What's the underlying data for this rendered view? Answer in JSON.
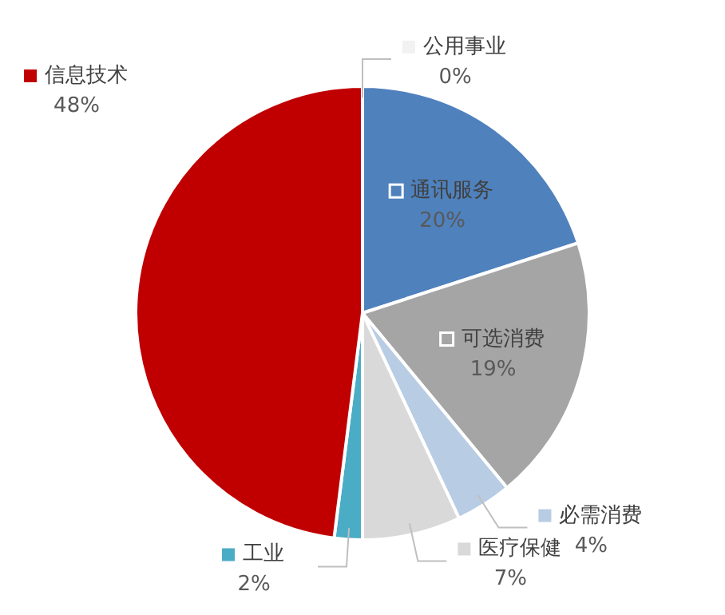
{
  "chart_data": {
    "type": "pie",
    "legend": "top left",
    "value_labels": [
      "0%",
      "20%",
      "19%",
      "4%",
      "7%",
      "2%",
      "48%"
    ],
    "categories": [
      "公用事业",
      "通讯服务",
      "可选消费",
      "必需消费",
      "医疗保健",
      "工业",
      "信息技术"
    ],
    "values": [
      0,
      20,
      19,
      4,
      7,
      2,
      48
    ],
    "colors": [
      "#f2f2f2",
      "#4f81bd",
      "#a5a5a5",
      "#b8cce4",
      "#d9d9d9",
      "#4bacc6",
      "#c00000"
    ]
  }
}
